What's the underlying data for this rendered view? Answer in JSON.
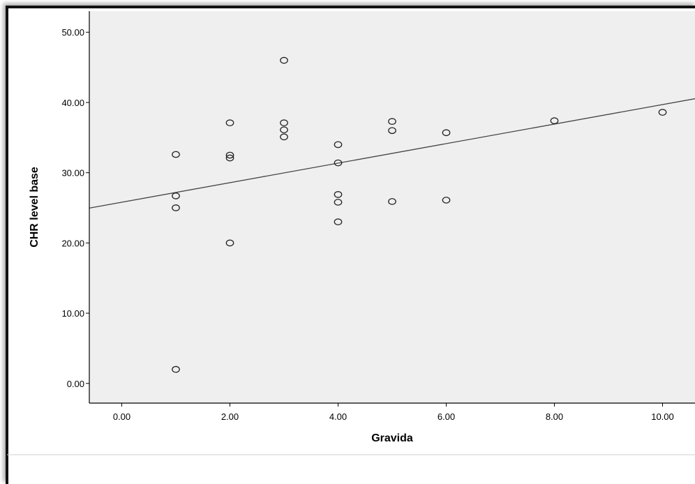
{
  "chart_data": {
    "type": "scatter",
    "title": "",
    "xlabel": "Gravida",
    "ylabel": "CHR level base",
    "xlim": [
      -0.6,
      10.6
    ],
    "ylim": [
      -2.8,
      53.0
    ],
    "x_ticks": [
      "0.00",
      "2.00",
      "4.00",
      "6.00",
      "8.00",
      "10.00"
    ],
    "x_tick_values": [
      0,
      2,
      4,
      6,
      8,
      10
    ],
    "y_ticks": [
      "0.00",
      "10.00",
      "20.00",
      "30.00",
      "40.00",
      "50.00"
    ],
    "y_tick_values": [
      0,
      10,
      20,
      30,
      40,
      50
    ],
    "grid": false,
    "points": [
      {
        "x": 1,
        "y": 32.6
      },
      {
        "x": 1,
        "y": 26.7
      },
      {
        "x": 1,
        "y": 25.0
      },
      {
        "x": 1,
        "y": 2.0
      },
      {
        "x": 2,
        "y": 37.1
      },
      {
        "x": 2,
        "y": 32.5
      },
      {
        "x": 2,
        "y": 32.1
      },
      {
        "x": 2,
        "y": 20.0
      },
      {
        "x": 3,
        "y": 46.0
      },
      {
        "x": 3,
        "y": 37.1
      },
      {
        "x": 3,
        "y": 36.1
      },
      {
        "x": 3,
        "y": 35.1
      },
      {
        "x": 4,
        "y": 34.0
      },
      {
        "x": 4,
        "y": 31.4
      },
      {
        "x": 4,
        "y": 26.9
      },
      {
        "x": 4,
        "y": 25.8
      },
      {
        "x": 4,
        "y": 23.0
      },
      {
        "x": 5,
        "y": 37.3
      },
      {
        "x": 5,
        "y": 36.0
      },
      {
        "x": 5,
        "y": 25.9
      },
      {
        "x": 6,
        "y": 35.7
      },
      {
        "x": 6,
        "y": 26.1
      },
      {
        "x": 8,
        "y": 37.4
      },
      {
        "x": 10,
        "y": 38.6
      }
    ],
    "fit_line": {
      "intercept": 25.8,
      "slope": 1.39
    },
    "colors": {
      "plot_background": "#efefef",
      "marker_stroke": "#222222",
      "fit_line": "#444444"
    }
  }
}
